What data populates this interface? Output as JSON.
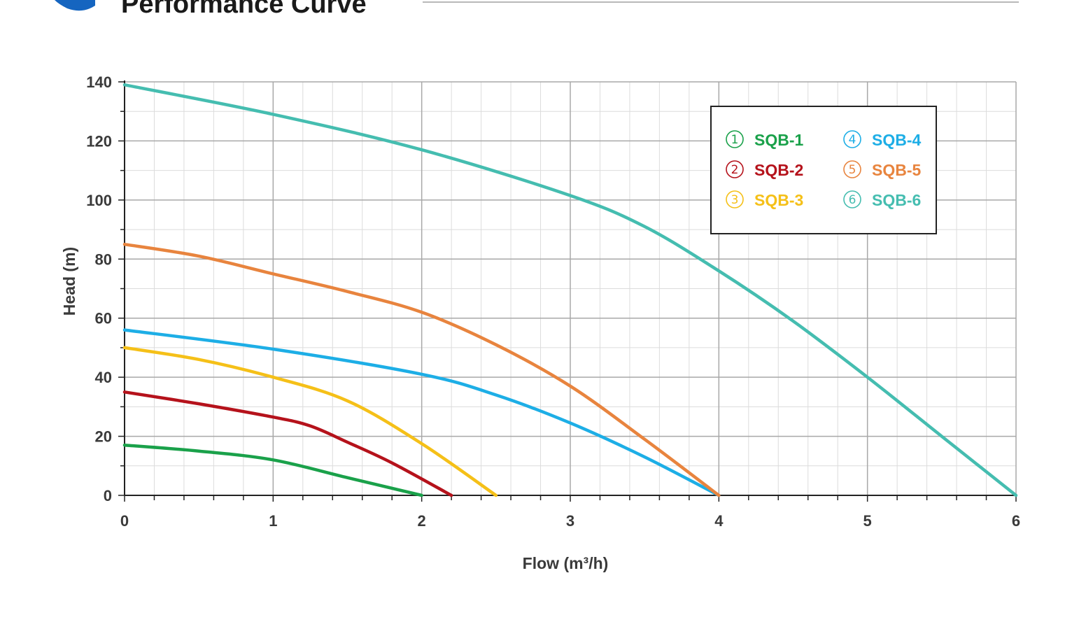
{
  "header": {
    "title": "Performance Curve",
    "accent_color": "#1565c0",
    "rule_color": "#b8b8b8"
  },
  "chart_data": {
    "type": "line",
    "title": "",
    "xlabel": "Flow (m³/h)",
    "ylabel": "Head (m)",
    "xlim": [
      0,
      6
    ],
    "ylim": [
      0,
      140
    ],
    "x_ticks": [
      0,
      1,
      2,
      3,
      4,
      5,
      6
    ],
    "y_ticks": [
      0,
      20,
      40,
      60,
      80,
      100,
      120,
      140
    ],
    "grid": true,
    "legend_position": "top-right",
    "series": [
      {
        "name": "SQB-1",
        "marker": "1",
        "color": "#1aa14a",
        "points": [
          [
            0,
            17
          ],
          [
            0.5,
            15
          ],
          [
            1,
            12
          ],
          [
            1.5,
            6
          ],
          [
            2,
            0
          ]
        ]
      },
      {
        "name": "SQB-2",
        "marker": "2",
        "color": "#b5121b",
        "points": [
          [
            0,
            35
          ],
          [
            0.5,
            31
          ],
          [
            1,
            26.5
          ],
          [
            1.25,
            23.5
          ],
          [
            1.5,
            18
          ],
          [
            1.8,
            11
          ],
          [
            2.2,
            0
          ]
        ]
      },
      {
        "name": "SQB-3",
        "marker": "3",
        "color": "#f5c018",
        "points": [
          [
            0,
            50
          ],
          [
            0.5,
            46
          ],
          [
            1,
            40
          ],
          [
            1.5,
            32
          ],
          [
            2,
            17.5
          ],
          [
            2.5,
            0
          ]
        ]
      },
      {
        "name": "SQB-4",
        "marker": "4",
        "color": "#1daee6",
        "points": [
          [
            0,
            56
          ],
          [
            1,
            49.5
          ],
          [
            2,
            41
          ],
          [
            2.5,
            34
          ],
          [
            3,
            24.5
          ],
          [
            3.5,
            13
          ],
          [
            4,
            0
          ]
        ]
      },
      {
        "name": "SQB-5",
        "marker": "5",
        "color": "#e8843e",
        "points": [
          [
            0,
            85
          ],
          [
            0.5,
            81
          ],
          [
            1,
            75
          ],
          [
            1.5,
            69
          ],
          [
            2,
            62
          ],
          [
            2.5,
            51
          ],
          [
            3,
            37
          ],
          [
            3.5,
            19
          ],
          [
            4,
            0
          ]
        ]
      },
      {
        "name": "SQB-6",
        "marker": "6",
        "color": "#45bdb0",
        "points": [
          [
            0,
            139
          ],
          [
            1,
            129
          ],
          [
            2,
            117
          ],
          [
            3,
            101.5
          ],
          [
            3.5,
            91
          ],
          [
            4,
            76
          ],
          [
            4.5,
            59
          ],
          [
            5,
            40
          ],
          [
            5.5,
            20
          ],
          [
            6,
            0
          ]
        ]
      }
    ]
  }
}
